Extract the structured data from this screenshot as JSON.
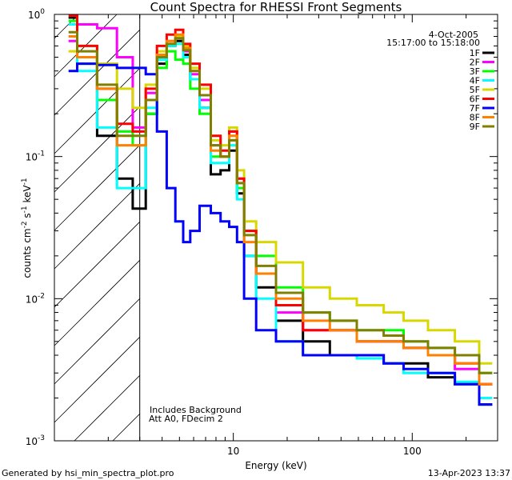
{
  "chart_data": {
    "type": "line",
    "title": "Count Spectra for RHESSI Front Segments",
    "xlabel": "Energy (keV)",
    "ylabel_parts": {
      "base": "counts cm",
      "exp1": "-2",
      "mid1": " s",
      "exp2": "-1",
      "mid2": " keV",
      "exp3": "-1"
    },
    "x_scale": "log",
    "y_scale": "log",
    "xlim": [
      1,
      300
    ],
    "ylim": [
      0.001,
      1
    ],
    "x_ticks": [
      {
        "value": 10,
        "label": "10"
      },
      {
        "value": 100,
        "label": "100"
      }
    ],
    "y_ticks": [
      {
        "value": 1,
        "label": "10",
        "exp": "0"
      },
      {
        "value": 0.1,
        "label": "10",
        "exp": "-1"
      },
      {
        "value": 0.01,
        "label": "10",
        "exp": "-2"
      },
      {
        "value": 0.001,
        "label": "10",
        "exp": "-3"
      }
    ],
    "grid": false,
    "legend_position": "top-right",
    "header": {
      "date": "4-Oct-2005",
      "time_range": "15:17:00 to 15:18:00"
    },
    "annotations": [
      "Includes Background",
      "Att A0, FDecim 2"
    ],
    "hatched_region_max_energy": 3,
    "series": [
      {
        "name": "1F",
        "color": "#000000",
        "values": [
          [
            1.2,
            0.95
          ],
          [
            1.5,
            0.5
          ],
          [
            2.0,
            0.14
          ],
          [
            2.5,
            0.07
          ],
          [
            3.0,
            0.043
          ],
          [
            3.5,
            0.2
          ],
          [
            4.0,
            0.45
          ],
          [
            4.5,
            0.6
          ],
          [
            5.0,
            0.65
          ],
          [
            5.5,
            0.52
          ],
          [
            6.0,
            0.35
          ],
          [
            7.0,
            0.22
          ],
          [
            8.0,
            0.075
          ],
          [
            9.0,
            0.08
          ],
          [
            10.0,
            0.11
          ],
          [
            11.0,
            0.055
          ],
          [
            12.0,
            0.02
          ],
          [
            15.0,
            0.012
          ],
          [
            20.0,
            0.007
          ],
          [
            30.0,
            0.005
          ],
          [
            40.0,
            0.004
          ],
          [
            60.0,
            0.004
          ],
          [
            80.0,
            0.0035
          ],
          [
            100.0,
            0.0035
          ],
          [
            150.0,
            0.0028
          ],
          [
            200.0,
            0.0025
          ],
          [
            280.0,
            0.0018
          ]
        ]
      },
      {
        "name": "2F",
        "color": "#ff00ff",
        "values": [
          [
            1.2,
            0.65
          ],
          [
            1.5,
            0.85
          ],
          [
            2.0,
            0.8
          ],
          [
            2.5,
            0.5
          ],
          [
            3.0,
            0.16
          ],
          [
            3.5,
            0.28
          ],
          [
            4.0,
            0.5
          ],
          [
            4.5,
            0.62
          ],
          [
            5.0,
            0.68
          ],
          [
            5.5,
            0.55
          ],
          [
            6.0,
            0.38
          ],
          [
            7.0,
            0.25
          ],
          [
            8.0,
            0.12
          ],
          [
            9.0,
            0.1
          ],
          [
            10.0,
            0.15
          ],
          [
            11.0,
            0.07
          ],
          [
            12.0,
            0.03
          ],
          [
            15.0,
            0.015
          ],
          [
            20.0,
            0.008
          ],
          [
            30.0,
            0.006
          ],
          [
            40.0,
            0.006
          ],
          [
            60.0,
            0.005
          ],
          [
            80.0,
            0.005
          ],
          [
            100.0,
            0.0045
          ],
          [
            150.0,
            0.004
          ],
          [
            200.0,
            0.0032
          ],
          [
            280.0,
            0.0025
          ]
        ]
      },
      {
        "name": "3F",
        "color": "#00ff00",
        "values": [
          [
            1.2,
            0.9
          ],
          [
            1.5,
            0.45
          ],
          [
            2.0,
            0.25
          ],
          [
            2.5,
            0.15
          ],
          [
            3.0,
            0.12
          ],
          [
            3.5,
            0.2
          ],
          [
            4.0,
            0.42
          ],
          [
            4.5,
            0.55
          ],
          [
            5.0,
            0.48
          ],
          [
            5.5,
            0.45
          ],
          [
            6.0,
            0.3
          ],
          [
            7.0,
            0.2
          ],
          [
            8.0,
            0.1
          ],
          [
            9.0,
            0.1
          ],
          [
            10.0,
            0.13
          ],
          [
            11.0,
            0.06
          ],
          [
            12.0,
            0.03
          ],
          [
            15.0,
            0.02
          ],
          [
            20.0,
            0.012
          ],
          [
            30.0,
            0.008
          ],
          [
            40.0,
            0.007
          ],
          [
            60.0,
            0.006
          ],
          [
            80.0,
            0.006
          ],
          [
            100.0,
            0.005
          ],
          [
            150.0,
            0.0045
          ],
          [
            200.0,
            0.004
          ],
          [
            280.0,
            0.003
          ]
        ]
      },
      {
        "name": "4F",
        "color": "#00ffff",
        "values": [
          [
            1.2,
            0.85
          ],
          [
            1.5,
            0.4
          ],
          [
            2.0,
            0.16
          ],
          [
            2.5,
            0.06
          ],
          [
            3.0,
            0.06
          ],
          [
            3.5,
            0.22
          ],
          [
            4.0,
            0.48
          ],
          [
            4.5,
            0.6
          ],
          [
            5.0,
            0.62
          ],
          [
            5.5,
            0.5
          ],
          [
            6.0,
            0.35
          ],
          [
            7.0,
            0.22
          ],
          [
            8.0,
            0.09
          ],
          [
            9.0,
            0.09
          ],
          [
            10.0,
            0.12
          ],
          [
            11.0,
            0.05
          ],
          [
            12.0,
            0.02
          ],
          [
            15.0,
            0.01
          ],
          [
            20.0,
            0.005
          ],
          [
            30.0,
            0.004
          ],
          [
            40.0,
            0.004
          ],
          [
            60.0,
            0.0038
          ],
          [
            80.0,
            0.0035
          ],
          [
            100.0,
            0.003
          ],
          [
            150.0,
            0.003
          ],
          [
            200.0,
            0.0026
          ],
          [
            280.0,
            0.002
          ]
        ]
      },
      {
        "name": "5F",
        "color": "#d8d800",
        "values": [
          [
            1.2,
            0.55
          ],
          [
            1.5,
            0.6
          ],
          [
            2.0,
            0.45
          ],
          [
            2.5,
            0.3
          ],
          [
            3.0,
            0.22
          ],
          [
            3.5,
            0.32
          ],
          [
            4.0,
            0.55
          ],
          [
            4.5,
            0.65
          ],
          [
            5.0,
            0.7
          ],
          [
            5.5,
            0.6
          ],
          [
            6.0,
            0.42
          ],
          [
            7.0,
            0.3
          ],
          [
            8.0,
            0.13
          ],
          [
            9.0,
            0.12
          ],
          [
            10.0,
            0.16
          ],
          [
            11.0,
            0.08
          ],
          [
            12.0,
            0.035
          ],
          [
            15.0,
            0.025
          ],
          [
            20.0,
            0.018
          ],
          [
            30.0,
            0.012
          ],
          [
            40.0,
            0.01
          ],
          [
            60.0,
            0.009
          ],
          [
            80.0,
            0.008
          ],
          [
            100.0,
            0.007
          ],
          [
            150.0,
            0.006
          ],
          [
            200.0,
            0.005
          ],
          [
            280.0,
            0.0035
          ]
        ]
      },
      {
        "name": "6F",
        "color": "#ff0000",
        "values": [
          [
            1.2,
            0.98
          ],
          [
            1.5,
            0.6
          ],
          [
            2.0,
            0.3
          ],
          [
            2.5,
            0.17
          ],
          [
            3.0,
            0.15
          ],
          [
            3.5,
            0.3
          ],
          [
            4.0,
            0.6
          ],
          [
            4.5,
            0.72
          ],
          [
            5.0,
            0.78
          ],
          [
            5.5,
            0.62
          ],
          [
            6.0,
            0.45
          ],
          [
            7.0,
            0.32
          ],
          [
            8.0,
            0.14
          ],
          [
            9.0,
            0.11
          ],
          [
            10.0,
            0.15
          ],
          [
            11.0,
            0.07
          ],
          [
            12.0,
            0.03
          ],
          [
            15.0,
            0.015
          ],
          [
            20.0,
            0.009
          ],
          [
            30.0,
            0.006
          ],
          [
            40.0,
            0.006
          ],
          [
            60.0,
            0.005
          ],
          [
            80.0,
            0.005
          ],
          [
            100.0,
            0.0045
          ],
          [
            150.0,
            0.004
          ],
          [
            200.0,
            0.0035
          ],
          [
            280.0,
            0.0025
          ]
        ]
      },
      {
        "name": "7F",
        "color": "#0000ff",
        "values": [
          [
            1.2,
            0.4
          ],
          [
            1.5,
            0.45
          ],
          [
            2.0,
            0.44
          ],
          [
            2.5,
            0.42
          ],
          [
            3.0,
            0.42
          ],
          [
            3.5,
            0.38
          ],
          [
            4.0,
            0.15
          ],
          [
            4.5,
            0.06
          ],
          [
            5.0,
            0.035
          ],
          [
            5.5,
            0.025
          ],
          [
            6.0,
            0.03
          ],
          [
            7.0,
            0.045
          ],
          [
            8.0,
            0.04
          ],
          [
            9.0,
            0.035
          ],
          [
            10.0,
            0.032
          ],
          [
            11.0,
            0.025
          ],
          [
            12.0,
            0.01
          ],
          [
            15.0,
            0.006
          ],
          [
            20.0,
            0.005
          ],
          [
            30.0,
            0.004
          ],
          [
            40.0,
            0.004
          ],
          [
            60.0,
            0.004
          ],
          [
            80.0,
            0.0035
          ],
          [
            100.0,
            0.0032
          ],
          [
            150.0,
            0.003
          ],
          [
            200.0,
            0.0025
          ],
          [
            280.0,
            0.0018
          ]
        ]
      },
      {
        "name": "8F",
        "color": "#ff8000",
        "values": [
          [
            1.2,
            0.7
          ],
          [
            1.5,
            0.5
          ],
          [
            2.0,
            0.3
          ],
          [
            2.5,
            0.12
          ],
          [
            3.0,
            0.12
          ],
          [
            3.5,
            0.25
          ],
          [
            4.0,
            0.52
          ],
          [
            4.5,
            0.65
          ],
          [
            5.0,
            0.72
          ],
          [
            5.5,
            0.58
          ],
          [
            6.0,
            0.4
          ],
          [
            7.0,
            0.27
          ],
          [
            8.0,
            0.11
          ],
          [
            9.0,
            0.1
          ],
          [
            10.0,
            0.14
          ],
          [
            11.0,
            0.065
          ],
          [
            12.0,
            0.025
          ],
          [
            15.0,
            0.015
          ],
          [
            20.0,
            0.01
          ],
          [
            30.0,
            0.007
          ],
          [
            40.0,
            0.006
          ],
          [
            60.0,
            0.005
          ],
          [
            80.0,
            0.005
          ],
          [
            100.0,
            0.0045
          ],
          [
            150.0,
            0.004
          ],
          [
            200.0,
            0.0035
          ],
          [
            280.0,
            0.0025
          ]
        ]
      },
      {
        "name": "9F",
        "color": "#808000",
        "values": [
          [
            1.2,
            0.75
          ],
          [
            1.5,
            0.55
          ],
          [
            2.0,
            0.32
          ],
          [
            2.5,
            0.14
          ],
          [
            3.0,
            0.14
          ],
          [
            3.5,
            0.25
          ],
          [
            4.0,
            0.5
          ],
          [
            4.5,
            0.62
          ],
          [
            5.0,
            0.68
          ],
          [
            5.5,
            0.56
          ],
          [
            6.0,
            0.4
          ],
          [
            7.0,
            0.27
          ],
          [
            8.0,
            0.12
          ],
          [
            9.0,
            0.1
          ],
          [
            10.0,
            0.13
          ],
          [
            11.0,
            0.065
          ],
          [
            12.0,
            0.028
          ],
          [
            15.0,
            0.017
          ],
          [
            20.0,
            0.011
          ],
          [
            30.0,
            0.008
          ],
          [
            40.0,
            0.007
          ],
          [
            60.0,
            0.006
          ],
          [
            80.0,
            0.0055
          ],
          [
            100.0,
            0.005
          ],
          [
            150.0,
            0.0045
          ],
          [
            200.0,
            0.004
          ],
          [
            280.0,
            0.003
          ]
        ]
      }
    ]
  },
  "footer": {
    "left": "Generated by hsi_min_spectra_plot.pro",
    "right": "13-Apr-2023 13:37"
  }
}
